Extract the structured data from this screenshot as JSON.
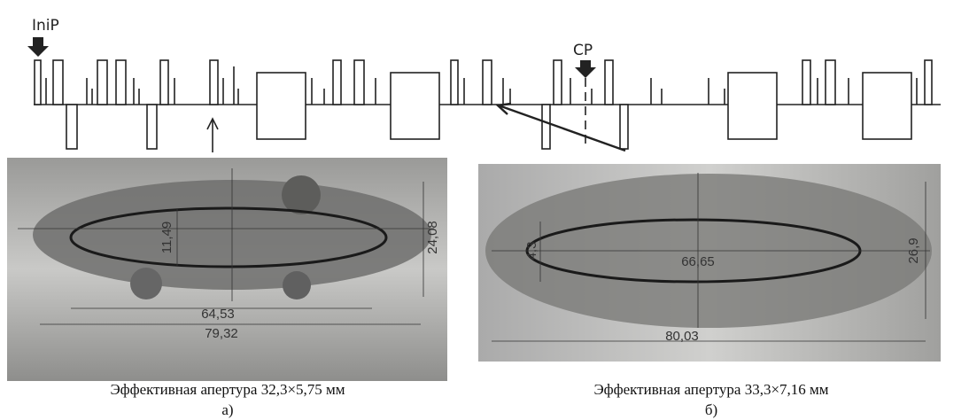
{
  "lattice": {
    "labels": [
      "IniP",
      "CP"
    ]
  },
  "panels": [
    {
      "dimensions": [
        "11,49",
        "24,08",
        "64,53",
        "79,32"
      ],
      "caption": "Эффективная апертура 32,3×5,75 мм",
      "label": "а)"
    },
    {
      "dimensions": [
        "4,3",
        "26,9",
        "66,65",
        "80,03"
      ],
      "caption": "Эффективная апертура 33,3×7,16 мм",
      "label": "б)"
    }
  ]
}
